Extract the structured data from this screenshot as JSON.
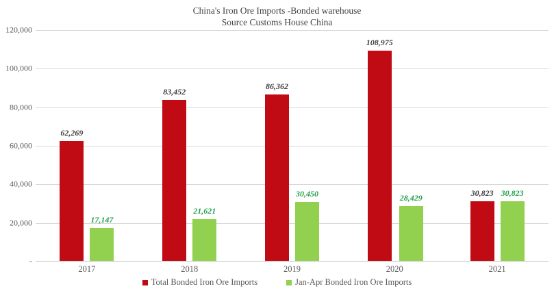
{
  "title": {
    "line1": "China's Iron Ore Imports -Bonded warehouse",
    "line2": "Source Customs House China"
  },
  "chart_data": {
    "type": "bar",
    "title": "China's Iron Ore Imports -Bonded warehouse",
    "subtitle": "Source Customs House China",
    "categories": [
      "2017",
      "2018",
      "2019",
      "2020",
      "2021"
    ],
    "series": [
      {
        "name": "Total Bonded Iron Ore Imports",
        "color": "#c00b15",
        "label_color": "#3f3f3f",
        "values": [
          62269,
          83452,
          86362,
          108975,
          30823
        ],
        "labels": [
          "62,269",
          "83,452",
          "86,362",
          "108,975",
          "30,823"
        ]
      },
      {
        "name": "Jan-Apr Bonded Iron Ore Imports",
        "color": "#92d050",
        "label_color": "#22a04c",
        "values": [
          17147,
          21621,
          30450,
          28429,
          30823
        ],
        "labels": [
          "17,147",
          "21,621",
          "30,450",
          "28,429",
          "30,823"
        ]
      }
    ],
    "xlabel": "",
    "ylabel": "",
    "ylim": [
      0,
      120000
    ],
    "ytick_interval": 20000,
    "yticks_top_to_bottom": [
      "120,000",
      "100,000",
      "80,000",
      "60,000",
      "40,000",
      "20,000",
      "-"
    ],
    "grid": true,
    "gridline_color": "#d9d9d9",
    "axis_line_color": "#bfbfbf",
    "legend_position": "bottom"
  }
}
